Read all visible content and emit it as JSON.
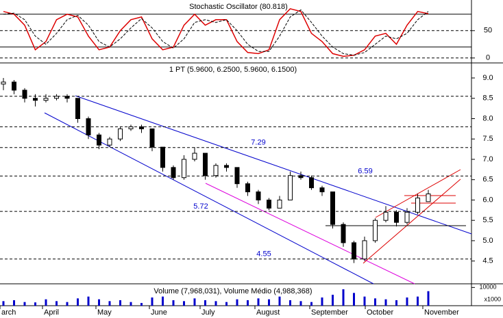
{
  "chart_data": [
    {
      "type": "stochastic",
      "title": "Stochastic Oscillator (80.818)",
      "series": [
        {
          "name": "%K",
          "color": "#dd0000",
          "values": [
            85,
            80,
            60,
            15,
            30,
            70,
            80,
            75,
            40,
            15,
            20,
            50,
            70,
            75,
            35,
            15,
            20,
            60,
            80,
            60,
            70,
            70,
            30,
            10,
            8,
            15,
            70,
            90,
            85,
            45,
            30,
            8,
            3,
            5,
            15,
            40,
            45,
            25,
            60,
            85,
            81
          ]
        },
        {
          "name": "%D",
          "color": "#000000",
          "values": [
            80,
            82,
            70,
            40,
            25,
            45,
            70,
            78,
            60,
            30,
            20,
            35,
            55,
            72,
            55,
            30,
            18,
            35,
            65,
            70,
            65,
            70,
            50,
            25,
            12,
            12,
            40,
            75,
            88,
            65,
            40,
            20,
            8,
            5,
            10,
            25,
            40,
            35,
            45,
            70,
            85
          ]
        }
      ],
      "ylim": [
        -9,
        106
      ],
      "yticks": [
        0,
        50
      ],
      "levels": [
        20,
        80
      ]
    },
    {
      "type": "candlestick",
      "title": "1 PT (5.9600, 6.2500, 5.9600, 6.1500)",
      "open": [
        8.85,
        8.9,
        8.7,
        8.5,
        8.45,
        8.5,
        8.55,
        8.5,
        8.0,
        7.6,
        7.35,
        7.5,
        7.75,
        7.8,
        7.75,
        7.3,
        6.8,
        6.55,
        7.0,
        7.15,
        6.6,
        6.85,
        6.8,
        6.4,
        6.2,
        6.0,
        5.8,
        6.0,
        6.6,
        6.55,
        6.3,
        6.2,
        5.4,
        4.95,
        4.55,
        5.0,
        5.5,
        5.7,
        5.45,
        5.7,
        5.96
      ],
      "high": [
        9.0,
        8.95,
        8.75,
        8.6,
        8.6,
        8.6,
        8.6,
        8.5,
        8.05,
        7.65,
        7.55,
        7.8,
        7.85,
        7.85,
        7.75,
        7.3,
        6.85,
        7.1,
        7.3,
        7.15,
        6.9,
        6.9,
        6.8,
        6.45,
        6.25,
        6.05,
        6.1,
        6.7,
        6.7,
        6.6,
        6.35,
        6.2,
        5.45,
        5.0,
        5.1,
        5.55,
        5.85,
        5.75,
        5.8,
        6.15,
        6.25
      ],
      "low": [
        8.7,
        8.6,
        8.4,
        8.3,
        8.4,
        8.45,
        8.4,
        7.9,
        7.5,
        7.25,
        7.3,
        7.45,
        7.7,
        7.65,
        7.2,
        6.7,
        6.5,
        6.5,
        6.95,
        6.5,
        6.55,
        6.7,
        6.3,
        6.1,
        5.9,
        5.75,
        5.8,
        6.0,
        6.5,
        6.25,
        6.1,
        5.3,
        4.85,
        4.45,
        4.5,
        4.95,
        5.45,
        5.35,
        5.4,
        5.65,
        5.96
      ],
      "close": [
        8.9,
        8.7,
        8.5,
        8.45,
        8.5,
        8.55,
        8.5,
        8.0,
        7.6,
        7.35,
        7.5,
        7.75,
        7.8,
        7.75,
        7.3,
        6.8,
        6.55,
        7.0,
        7.15,
        6.6,
        6.85,
        6.8,
        6.4,
        6.2,
        6.0,
        5.8,
        6.0,
        6.6,
        6.55,
        6.3,
        6.2,
        5.4,
        4.95,
        4.55,
        5.0,
        5.5,
        5.7,
        5.45,
        5.7,
        6.05,
        6.15
      ],
      "ylim": [
        3.94,
        9.37
      ],
      "yticks": [
        4.5,
        {
          "value": 5,
          "label": "5.0"
        },
        5.5,
        {
          "value": 6,
          "label": "6.0"
        },
        6.5,
        {
          "value": 7,
          "label": "7.0"
        },
        7.5,
        {
          "value": 8,
          "label": "8.0"
        },
        8.5,
        {
          "value": 9,
          "label": "9.0"
        }
      ],
      "levels": [
        8.55,
        7.8,
        7.29,
        6.59,
        5.72,
        4.55
      ],
      "annotations": [
        {
          "value": 7.29,
          "label": "7.29"
        },
        {
          "value": 6.59,
          "label": "6.59"
        },
        {
          "value": 5.72,
          "label": "5.72"
        },
        {
          "value": 4.55,
          "label": "4.55"
        }
      ],
      "x_labels": [
        "arch",
        "April",
        "May",
        "June",
        "July",
        "August",
        "September",
        "October",
        "November"
      ]
    },
    {
      "type": "volume",
      "title": "Volume (7,968,031), Volume Médio (4,988,368)",
      "color": "#0000cc",
      "values": [
        2500,
        3000,
        2000,
        1800,
        3500,
        2500,
        2000,
        4000,
        5000,
        3500,
        2500,
        3000,
        2000,
        1500,
        4500,
        5000,
        3000,
        2500,
        4000,
        3000,
        2500,
        2000,
        3500,
        3000,
        4000,
        3500,
        5000,
        3000,
        2500,
        2000,
        4500,
        6000,
        9000,
        7000,
        5000,
        4000,
        3500,
        3000,
        4500,
        5000,
        7968
      ],
      "ylim": [
        0,
        12000
      ],
      "yticks": [
        10000
      ],
      "unit": "x1000"
    }
  ]
}
